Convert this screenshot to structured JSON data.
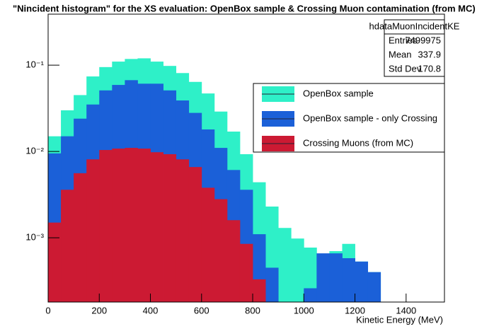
{
  "chart_data": {
    "type": "histogram",
    "title": "\"Nincident histogram\" for the XS evaluation: OpenBox sample & Crossing Muon contamination (from MC)",
    "x_label": "Kinetic Energy (MeV)",
    "log_y": true,
    "bins": [
      0,
      50,
      100,
      150,
      200,
      250,
      300,
      350,
      400,
      450,
      500,
      550,
      600,
      650,
      700,
      750,
      800,
      850,
      900,
      950,
      1000,
      1050,
      1100,
      1150,
      1200,
      1250,
      1300,
      1350,
      1400,
      1450,
      1500,
      1550
    ],
    "series": [
      {
        "name": "OpenBox sample",
        "color": "#2ef0c8",
        "values": [
          0.015,
          0.03,
          0.045,
          0.074,
          0.095,
          0.11,
          0.118,
          0.12,
          0.11,
          0.098,
          0.081,
          0.064,
          0.047,
          0.029,
          0.017,
          0.0093,
          0.0044,
          0.0023,
          0.0013,
          0.00098,
          0.00077,
          0.00036,
          0.0007,
          0.00085,
          0.00053,
          0.0004,
          null,
          null,
          null,
          null,
          null
        ]
      },
      {
        "name": "OpenBox sample - only Crossing",
        "color": "#1b60d8",
        "values": [
          0.0095,
          0.015,
          0.024,
          0.035,
          0.051,
          0.059,
          0.067,
          0.061,
          0.061,
          0.051,
          0.039,
          0.028,
          0.018,
          0.011,
          0.0061,
          0.0036,
          0.0011,
          0.00045,
          null,
          null,
          0.00026,
          0.00066,
          0.00066,
          0.00058,
          0.00053,
          0.0004,
          null,
          null,
          null,
          null,
          null
        ]
      },
      {
        "name": "Crossing Muons (from MC)",
        "color": "#cc1a33",
        "values": [
          0.0015,
          0.0036,
          0.0056,
          0.0081,
          0.0104,
          0.0108,
          0.011,
          0.0108,
          0.0098,
          0.0093,
          0.0081,
          0.0066,
          0.0038,
          0.0028,
          0.0016,
          0.00085,
          0.00033,
          null,
          null,
          null,
          null,
          null,
          null,
          null,
          null,
          null,
          null,
          null,
          null,
          null,
          null
        ]
      }
    ],
    "xlim": [
      0,
      1550
    ],
    "xticks": [
      0,
      200,
      400,
      600,
      800,
      1000,
      1200,
      1400
    ],
    "ylim": [
      0.00018,
      0.39
    ],
    "yticks": [
      {
        "value": 0.001,
        "label": "10⁻³"
      },
      {
        "value": 0.01,
        "label": "10⁻²"
      },
      {
        "value": 0.1,
        "label": "10⁻¹"
      }
    ],
    "stats": {
      "name": "hdataMuonIncidentKE",
      "rows": [
        {
          "label": "Entries",
          "value": 7499975
        },
        {
          "label": "Mean",
          "value": 337.9
        },
        {
          "label": "Std Dev",
          "value": 170.8
        }
      ]
    }
  }
}
